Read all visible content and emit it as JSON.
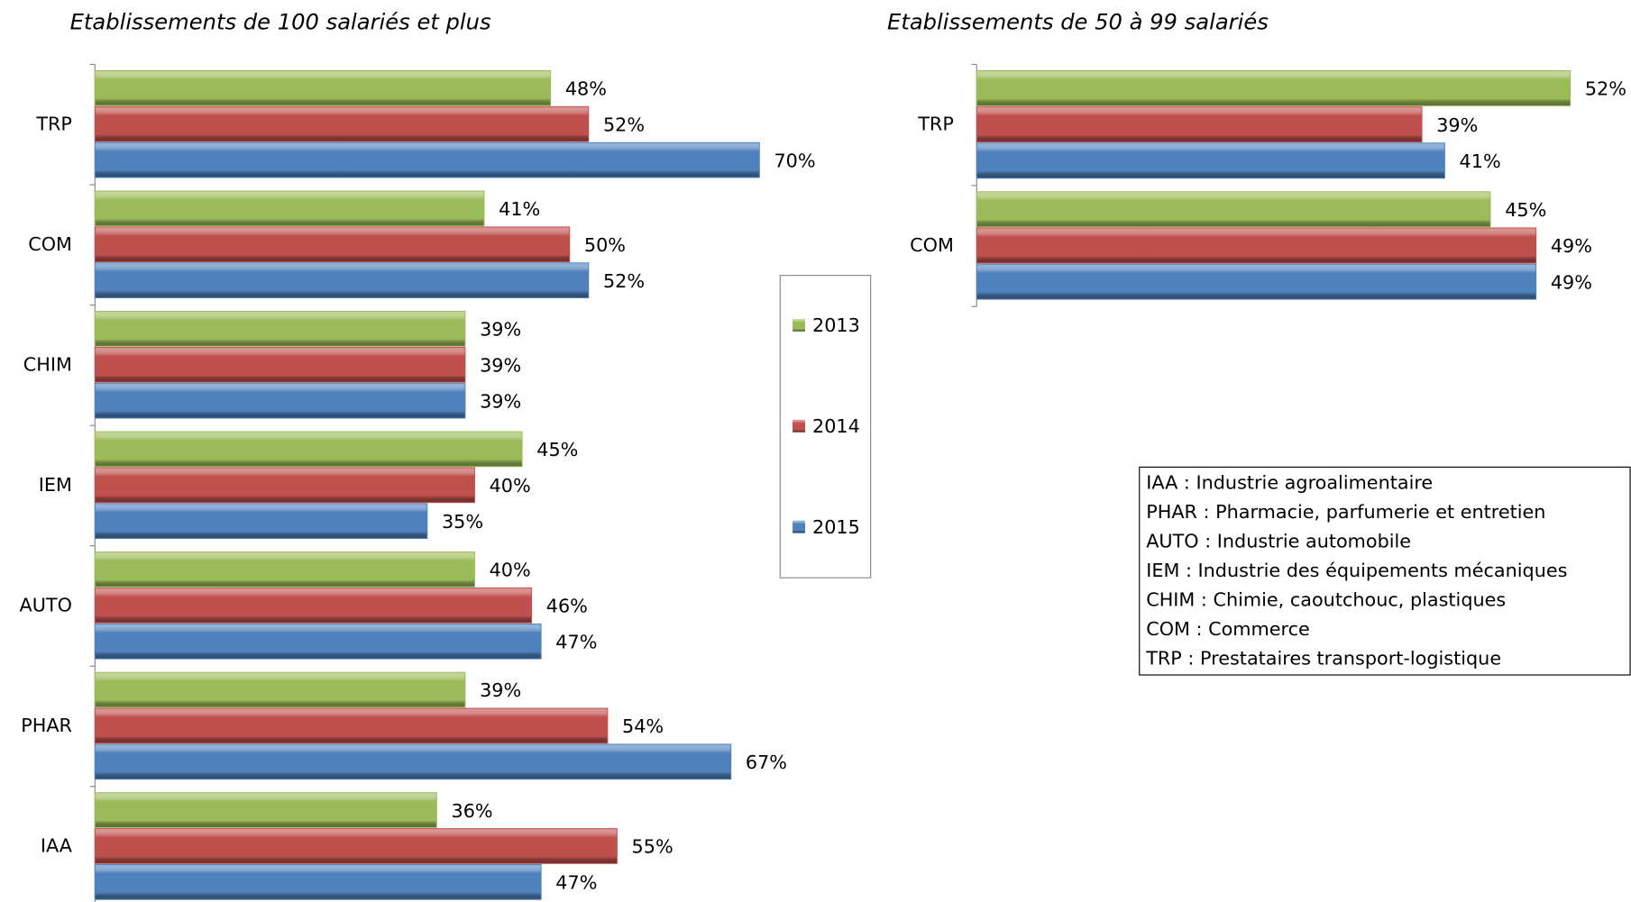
{
  "chart_data": [
    {
      "type": "bar",
      "title": "Etablissements de 100 salariés et plus",
      "categories": [
        "TRP",
        "COM",
        "CHIM",
        "IEM",
        "AUTO",
        "PHAR",
        "IAA"
      ],
      "series": [
        {
          "name": "2013",
          "color": "#9bbb59",
          "values": [
            48,
            41,
            39,
            45,
            40,
            39,
            36
          ],
          "value_labels": [
            "48%",
            "41%",
            "39%",
            "45%",
            "40%",
            "39%",
            "36%"
          ]
        },
        {
          "name": "2014",
          "color": "#c0504d",
          "values": [
            52,
            50,
            39,
            40,
            46,
            54,
            55
          ],
          "value_labels": [
            "52%",
            "50%",
            "39%",
            "40%",
            "46%",
            "54%",
            "55%"
          ]
        },
        {
          "name": "2015",
          "color": "#4f81bd",
          "values": [
            70,
            52,
            39,
            35,
            47,
            67,
            47
          ],
          "value_labels": [
            "70%",
            "52%",
            "39%",
            "35%",
            "47%",
            "67%",
            "47%"
          ]
        }
      ]
    },
    {
      "type": "bar",
      "title": "Etablissements de 50 à 99 salariés",
      "categories": [
        "TRP",
        "COM"
      ],
      "series": [
        {
          "name": "2013",
          "color": "#9bbb59",
          "values": [
            52,
            45
          ],
          "value_labels": [
            "52%",
            "45%"
          ]
        },
        {
          "name": "2014",
          "color": "#c0504d",
          "values": [
            39,
            49
          ],
          "value_labels": [
            "39%",
            "49%"
          ]
        },
        {
          "name": "2015",
          "color": "#4f81bd",
          "values": [
            41,
            49
          ],
          "value_labels": [
            "41%",
            "49%"
          ]
        }
      ]
    }
  ],
  "text_box": {
    "lines": [
      "IAA : Industrie agroalimentaire",
      "PHAR : Pharmacie, parfumerie et entretien",
      "AUTO : Industrie automobile",
      "IEM : Industrie des équipements mécaniques",
      "CHIM : Chimie, caoutchouc, plastiques",
      "COM : Commerce",
      "TRP : Prestataires transport-logistique"
    ]
  }
}
